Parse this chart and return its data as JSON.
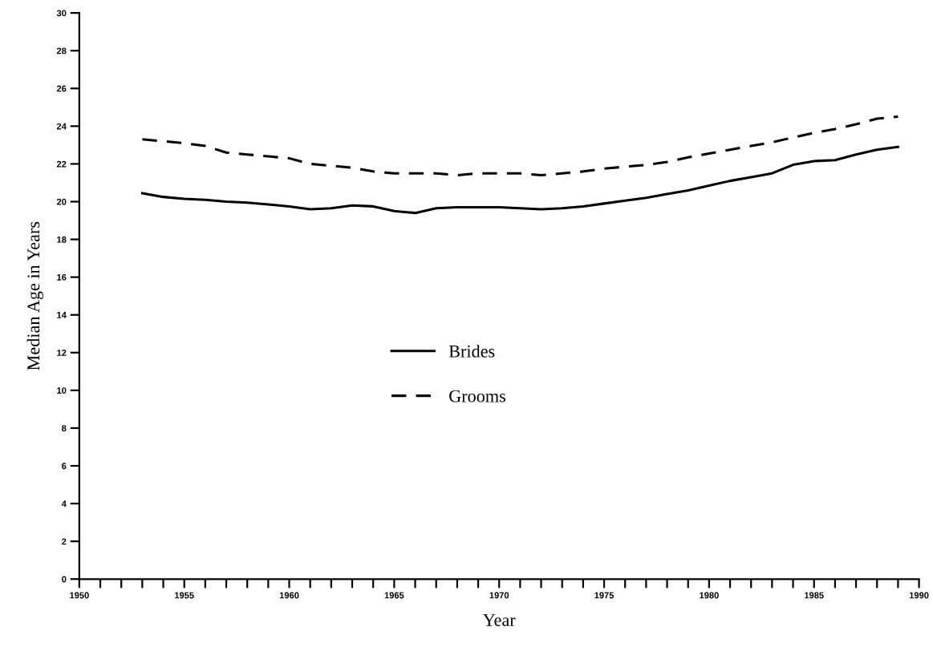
{
  "chart_data": {
    "type": "line",
    "xlabel": "Year",
    "ylabel": "Median Age in Years",
    "x": [
      1953,
      1954,
      1955,
      1956,
      1957,
      1958,
      1959,
      1960,
      1961,
      1962,
      1963,
      1964,
      1965,
      1966,
      1967,
      1968,
      1969,
      1970,
      1971,
      1972,
      1973,
      1974,
      1975,
      1976,
      1977,
      1978,
      1979,
      1980,
      1981,
      1982,
      1983,
      1984,
      1985,
      1986,
      1987,
      1988,
      1989
    ],
    "series": [
      {
        "name": "Brides",
        "color": "#000000",
        "line_style": "solid",
        "values": [
          20.45,
          20.25,
          20.15,
          20.1,
          20.0,
          19.95,
          19.85,
          19.75,
          19.6,
          19.65,
          19.8,
          19.75,
          19.5,
          19.4,
          19.65,
          19.7,
          19.7,
          19.7,
          19.65,
          19.6,
          19.65,
          19.75,
          19.9,
          20.05,
          20.2,
          20.4,
          20.6,
          20.85,
          21.1,
          21.3,
          21.5,
          21.95,
          22.15,
          22.2,
          22.5,
          22.75,
          22.9
        ]
      },
      {
        "name": "Grooms",
        "color": "#000000",
        "line_style": "dashed",
        "values": [
          23.3,
          23.2,
          23.1,
          22.95,
          22.6,
          22.5,
          22.4,
          22.3,
          22.0,
          21.9,
          21.8,
          21.6,
          21.5,
          21.5,
          21.5,
          21.4,
          21.5,
          21.5,
          21.5,
          21.4,
          21.5,
          21.6,
          21.75,
          21.85,
          21.95,
          22.1,
          22.35,
          22.55,
          22.75,
          22.95,
          23.15,
          23.4,
          23.65,
          23.85,
          24.1,
          24.4,
          24.5
        ]
      }
    ],
    "xlim": [
      1950,
      1990
    ],
    "xticks": [
      1950,
      {
        "value": 1951,
        "label": null
      },
      {
        "value": 1952,
        "label": null
      },
      {
        "value": 1953,
        "label": null
      },
      {
        "value": 1954,
        "label": null
      },
      1955,
      {
        "value": 1956,
        "label": null
      },
      {
        "value": 1957,
        "label": null
      },
      {
        "value": 1958,
        "label": null
      },
      {
        "value": 1959,
        "label": null
      },
      1960,
      {
        "value": 1961,
        "label": null
      },
      {
        "value": 1962,
        "label": null
      },
      {
        "value": 1963,
        "label": null
      },
      {
        "value": 1964,
        "label": null
      },
      1965,
      {
        "value": 1966,
        "label": null
      },
      {
        "value": 1967,
        "label": null
      },
      {
        "value": 1968,
        "label": null
      },
      {
        "value": 1969,
        "label": null
      },
      1970,
      {
        "value": 1971,
        "label": null
      },
      {
        "value": 1972,
        "label": null
      },
      {
        "value": 1973,
        "label": null
      },
      {
        "value": 1974,
        "label": null
      },
      1975,
      {
        "value": 1976,
        "label": null
      },
      {
        "value": 1977,
        "label": null
      },
      {
        "value": 1978,
        "label": null
      },
      {
        "value": 1979,
        "label": null
      },
      1980,
      {
        "value": 1981,
        "label": null
      },
      {
        "value": 1982,
        "label": null
      },
      {
        "value": 1983,
        "label": null
      },
      {
        "value": 1984,
        "label": null
      },
      1985,
      {
        "value": 1986,
        "label": null
      },
      {
        "value": 1987,
        "label": null
      },
      {
        "value": 1988,
        "label": null
      },
      {
        "value": 1989,
        "label": null
      },
      1990
    ],
    "ylim": [
      0,
      30
    ],
    "yticks": [
      0,
      2,
      4,
      6,
      8,
      10,
      12,
      14,
      16,
      18,
      20,
      22,
      24,
      26,
      28,
      30
    ],
    "grid": false,
    "legend": "center",
    "marker": "none"
  }
}
